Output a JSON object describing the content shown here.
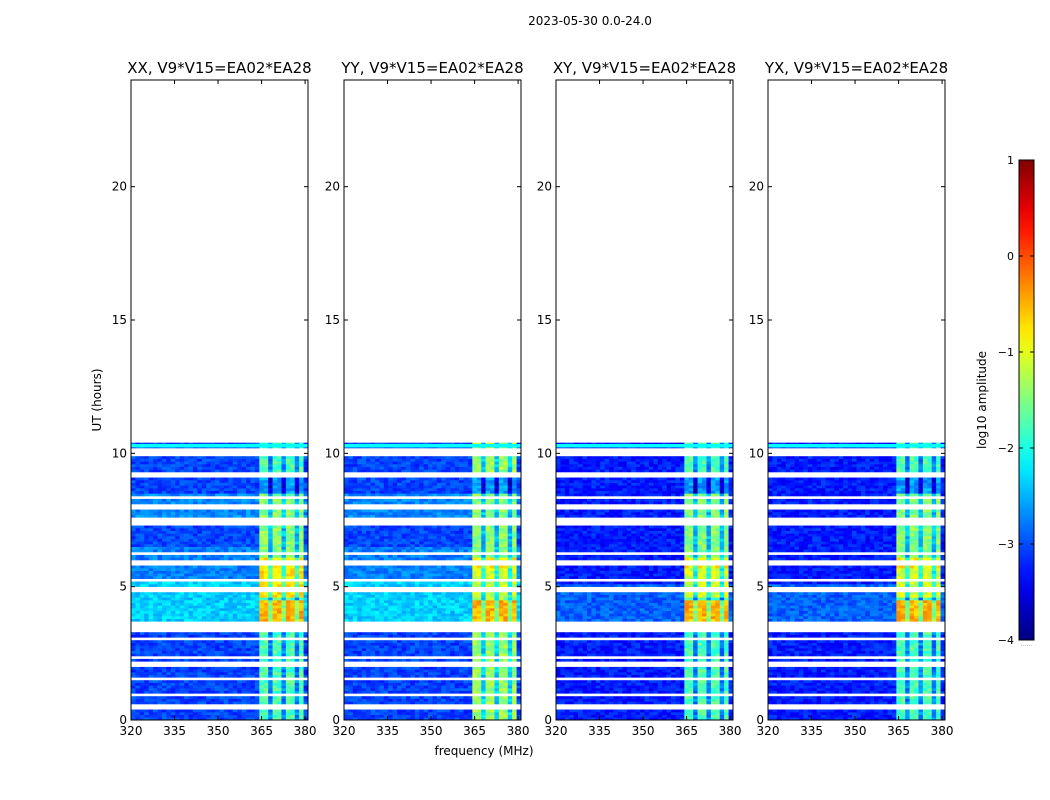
{
  "figure": {
    "suptitle": "2023-05-30 0.0-24.0",
    "xlabel": "frequency (MHz)",
    "ylabel": "UT (hours)",
    "colorbar_label": "log10 amplitude",
    "colorbar_footer": "......"
  },
  "chart_data": {
    "type": "heatmap",
    "panels": [
      {
        "title": "XX, V9*V15=EA02*EA28",
        "pol": "XX"
      },
      {
        "title": "YY, V9*V15=EA02*EA28",
        "pol": "YY"
      },
      {
        "title": "XY, V9*V15=EA02*EA28",
        "pol": "XY"
      },
      {
        "title": "YX, V9*V15=EA02*EA28",
        "pol": "YX"
      }
    ],
    "x_label": "frequency (MHz)",
    "x_range": [
      320,
      381
    ],
    "x_ticks": [
      320,
      335,
      350,
      365,
      380
    ],
    "y_label": "UT (hours)",
    "y_range": [
      0,
      24
    ],
    "y_ticks": [
      0,
      5,
      10,
      15,
      20
    ],
    "data_extent_hours": [
      0,
      10.3
    ],
    "rfi_band_mhz": [
      363.5,
      379
    ],
    "colorbar": {
      "label": "log10 amplitude",
      "range": [
        -4,
        1
      ],
      "ticks": [
        -4,
        -3,
        -2,
        -1,
        0,
        1
      ],
      "colormap": "jet"
    }
  }
}
